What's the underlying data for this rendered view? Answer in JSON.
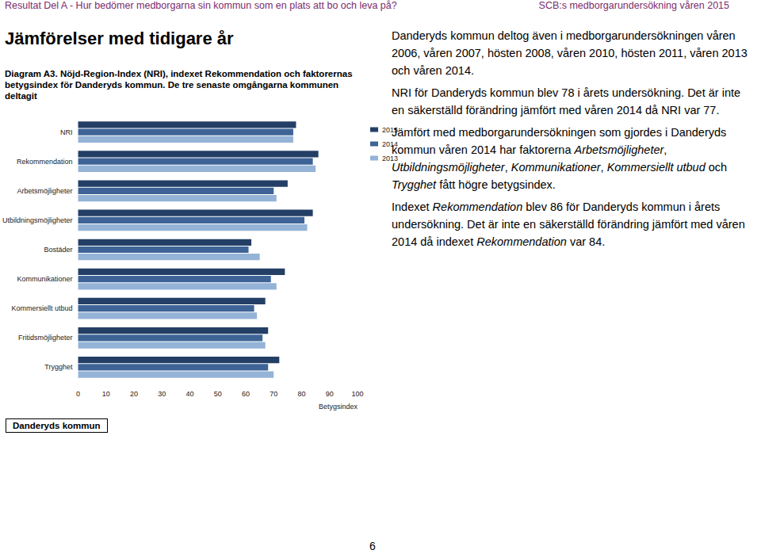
{
  "header": {
    "left": "Resultat Del A - Hur bedömer medborgarna sin kommun som en plats att bo och leva på?",
    "right": "SCB:s medborgarundersökning våren 2015"
  },
  "heading": "Jämförelser med tidigare år",
  "caption": "Diagram A3. Nöjd-Region-Index (NRI), indexet Rekommendation och faktorernas betygsindex för Danderyds kommun. De tre senaste omgångarna kommunen deltagit",
  "chart_data": {
    "type": "bar",
    "orientation": "horizontal",
    "categories": [
      "NRI",
      "Rekommendation",
      "Arbetsmöjligheter",
      "Utbildningsmöjligheter",
      "Bostäder",
      "Kommunikationer",
      "Kommersiellt utbud",
      "Fritidsmöjligheter",
      "Trygghet"
    ],
    "series": [
      {
        "name": "2015",
        "color": "#243f66",
        "values": [
          78,
          86,
          75,
          84,
          62,
          74,
          67,
          68,
          72
        ]
      },
      {
        "name": "2014",
        "color": "#3e6497",
        "values": [
          77,
          84,
          70,
          81,
          61,
          69,
          63,
          66,
          68
        ]
      },
      {
        "name": "2013",
        "color": "#95b3d7",
        "values": [
          77,
          85,
          71,
          82,
          65,
          71,
          64,
          67,
          70
        ]
      }
    ],
    "xlim": [
      0,
      100
    ],
    "xticks": [
      0,
      10,
      20,
      30,
      40,
      50,
      60,
      70,
      80,
      90,
      100
    ],
    "xlabel": "Betygsindex",
    "grid": false,
    "legend": "right"
  },
  "paragraphs": [
    [
      {
        "text": "Danderyds kommun deltog även i medborgarundersökningen våren 2006, våren 2007, hösten 2008, våren 2010, hösten 2011, våren 2013 och våren 2014."
      }
    ],
    [
      {
        "text": "NRI för Danderyds kommun blev 78 i årets undersökning. Det är inte en säkerställd förändring jämfört med våren 2014 då NRI var 77."
      }
    ],
    [
      {
        "text": "Jämfört med medborgarundersökningen som gjordes i Danderyds kommun våren 2014 har faktorerna "
      },
      {
        "text": "Arbetsmöjligheter",
        "italic": true
      },
      {
        "text": ", "
      },
      {
        "text": "Utbildningsmöjligheter",
        "italic": true
      },
      {
        "text": ", "
      },
      {
        "text": "Kommunikationer",
        "italic": true
      },
      {
        "text": ", "
      },
      {
        "text": "Kommersiellt utbud",
        "italic": true
      },
      {
        "text": " och "
      },
      {
        "text": "Trygghet",
        "italic": true
      },
      {
        "text": " fått högre betygsindex."
      }
    ],
    [
      {
        "text": "Indexet "
      },
      {
        "text": "Rekommendation",
        "italic": true
      },
      {
        "text": " blev 86 för Danderyds kommun i årets undersökning. Det är inte en säkerställd förändring jämfört med våren 2014 då indexet "
      },
      {
        "text": "Rekommendation",
        "italic": true
      },
      {
        "text": " var 84."
      }
    ]
  ],
  "footer": "Danderyds kommun",
  "page_number": 6
}
